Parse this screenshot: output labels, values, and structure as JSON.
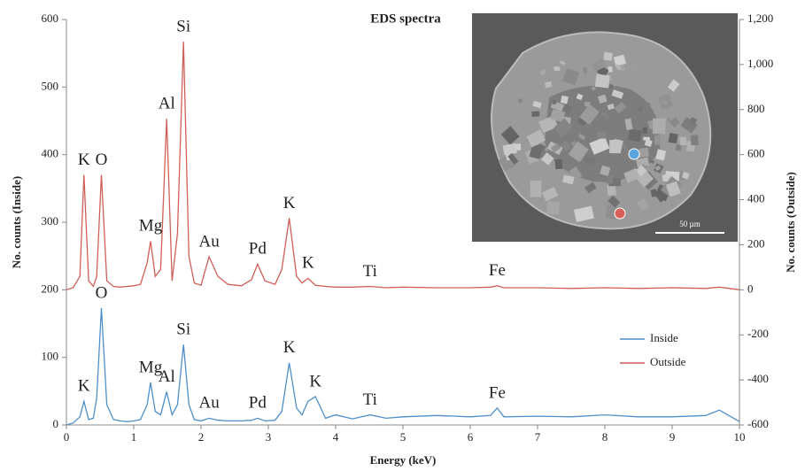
{
  "chart_data": {
    "type": "line",
    "title": "EDS spectra",
    "xlabel": "Energy (keV)",
    "ylabel": "No. counts (Inside)",
    "y2label": "No. counts (Outside)",
    "x": [
      0,
      0.1,
      0.2,
      0.26,
      0.33,
      0.4,
      0.45,
      0.52,
      0.6,
      0.7,
      0.8,
      0.9,
      1.0,
      1.1,
      1.2,
      1.25,
      1.32,
      1.4,
      1.49,
      1.57,
      1.65,
      1.74,
      1.82,
      1.9,
      2.0,
      2.12,
      2.25,
      2.4,
      2.6,
      2.75,
      2.84,
      2.95,
      3.1,
      3.2,
      3.31,
      3.42,
      3.5,
      3.59,
      3.7,
      3.85,
      4.0,
      4.25,
      4.51,
      4.75,
      5.0,
      5.5,
      6.0,
      6.3,
      6.4,
      6.5,
      7.0,
      7.5,
      8.0,
      8.5,
      9.0,
      9.5,
      9.7,
      10.0
    ],
    "series": [
      {
        "name": "Inside",
        "color": "#4f8fc9",
        "values": [
          0,
          3,
          12,
          35,
          8,
          10,
          40,
          173,
          30,
          8,
          6,
          5,
          6,
          8,
          30,
          63,
          20,
          15,
          49,
          15,
          30,
          119,
          30,
          8,
          6,
          10,
          7,
          6,
          6,
          7,
          10,
          6,
          7,
          20,
          92,
          25,
          15,
          35,
          42,
          10,
          15,
          9,
          15,
          10,
          12,
          14,
          12,
          14,
          25,
          12,
          13,
          12,
          15,
          12,
          12,
          14,
          22,
          5
        ],
        "annotations": [
          {
            "text": "K",
            "x": 0.26
          },
          {
            "text": "O",
            "x": 0.52
          },
          {
            "text": "Mg",
            "x": 1.25
          },
          {
            "text": "Al",
            "x": 1.49
          },
          {
            "text": "Si",
            "x": 1.74
          },
          {
            "text": "Au",
            "x": 2.12
          },
          {
            "text": "Pd",
            "x": 2.84
          },
          {
            "text": "K",
            "x": 3.31
          },
          {
            "text": "K",
            "x": 3.7
          },
          {
            "text": "Ti",
            "x": 4.51
          },
          {
            "text": "Fe",
            "x": 6.4
          }
        ]
      },
      {
        "name": "Outside",
        "color": "#cf5f58",
        "axis": "y2",
        "values": [
          0,
          9,
          60,
          510,
          40,
          15,
          60,
          510,
          40,
          15,
          12,
          15,
          18,
          24,
          120,
          216,
          60,
          90,
          759,
          40,
          250,
          1101,
          150,
          30,
          20,
          147,
          60,
          24,
          18,
          45,
          114,
          40,
          24,
          90,
          318,
          60,
          30,
          51,
          20,
          15,
          12,
          12,
          15,
          9,
          12,
          9,
          9,
          12,
          18,
          9,
          9,
          6,
          9,
          6,
          9,
          6,
          12,
          0
        ],
        "annotations": [
          {
            "text": "K",
            "x": 0.26
          },
          {
            "text": "O",
            "x": 0.52
          },
          {
            "text": "Mg",
            "x": 1.25
          },
          {
            "text": "Al",
            "x": 1.49
          },
          {
            "text": "Si",
            "x": 1.74
          },
          {
            "text": "Au",
            "x": 2.12
          },
          {
            "text": "Pd",
            "x": 2.84
          },
          {
            "text": "K",
            "x": 3.31
          },
          {
            "text": "K",
            "x": 3.59
          },
          {
            "text": "Ti",
            "x": 4.51
          },
          {
            "text": "Fe",
            "x": 6.4
          }
        ]
      }
    ],
    "xlim": [
      0,
      10
    ],
    "xticks": [
      0,
      1,
      2,
      3,
      4,
      5,
      6,
      7,
      8,
      9,
      10
    ],
    "ylim": [
      0,
      600
    ],
    "yticks": [
      0,
      100,
      200,
      300,
      400,
      500,
      600
    ],
    "y2lim": [
      -600,
      1200
    ],
    "y2ticks": [
      -600,
      -400,
      -200,
      0,
      200,
      400,
      600,
      800,
      {
        "value": 1000,
        "label": "1,000"
      },
      {
        "value": 1200,
        "label": "1,200"
      }
    ],
    "legend": "right",
    "inset": {
      "scale_bar": "50 µm"
    }
  }
}
